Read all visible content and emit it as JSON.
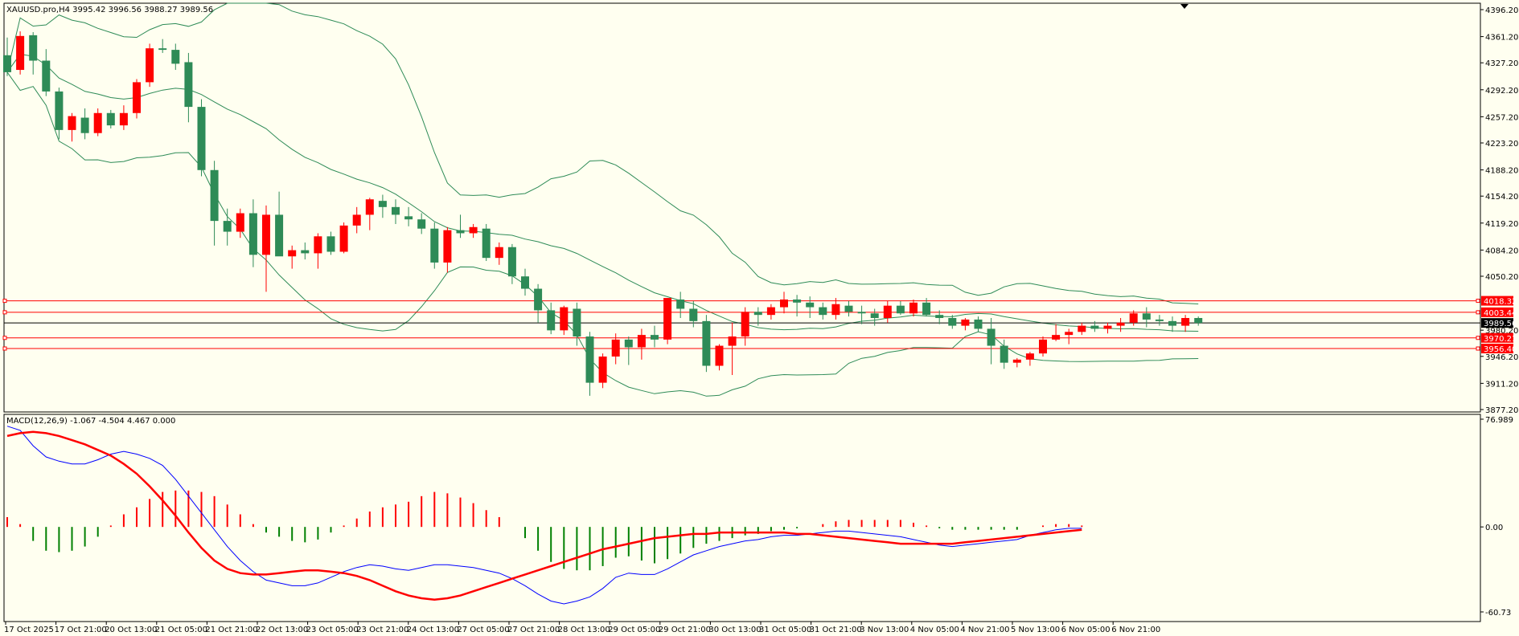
{
  "main_chart": {
    "header": "XAUUSD.pro,H4  3995.42 3996.56 3988.27 3989.56",
    "price_ticks": [
      "4396.20",
      "4361.20",
      "4327.20",
      "4292.20",
      "4257.20",
      "4223.20",
      "4188.20",
      "4154.20",
      "4119.20",
      "4084.20",
      "4050.20",
      "3980.20",
      "3946.20",
      "3911.20",
      "3877.20"
    ],
    "lines": [
      {
        "label": "4018.32",
        "value": 4018.32,
        "color": "#ff0000"
      },
      {
        "label": "4003.44",
        "value": 4003.44,
        "color": "#ff0000"
      },
      {
        "label": "3970.21",
        "value": 3970.21,
        "color": "#ff0000"
      },
      {
        "label": "3956.40",
        "value": 3956.4,
        "color": "#ff0000"
      },
      {
        "label": "3989.56",
        "value": 3989.56,
        "color": "#000000"
      }
    ],
    "colors": {
      "up": "#ff0000",
      "down": "#2e8b57",
      "band": "#2e8b57",
      "background": "#fffff0"
    }
  },
  "macd_panel": {
    "header": "MACD(12,26,9) -1.067 -4.504 4.467 0.000",
    "ticks": [
      "76.989",
      "0.00",
      "-60.73"
    ],
    "colors": {
      "macd_line": "#0000ff",
      "signal_line": "#ff0000",
      "hist_up": "#ff0000",
      "hist_down": "#008000"
    }
  },
  "time_axis": [
    "17 Oct 2025",
    "17 Oct 21:00",
    "20 Oct 13:00",
    "21 Oct 05:00",
    "21 Oct 21:00",
    "22 Oct 13:00",
    "23 Oct 05:00",
    "23 Oct 21:00",
    "24 Oct 13:00",
    "27 Oct 05:00",
    "27 Oct 21:00",
    "28 Oct 13:00",
    "29 Oct 05:00",
    "29 Oct 21:00",
    "30 Oct 13:00",
    "31 Oct 05:00",
    "31 Oct 21:00",
    "3 Nov 13:00",
    "4 Nov 05:00",
    "4 Nov 21:00",
    "5 Nov 13:00",
    "6 Nov 05:00",
    "6 Nov 21:00"
  ],
  "chart_data": [
    {
      "type": "candlestick",
      "title": "XAUUSD.pro,H4",
      "ylim": [
        3877.2,
        4396.2
      ],
      "bars": [
        [
          4337,
          4360,
          4310,
          4315
        ],
        [
          4318,
          4368,
          4312,
          4362
        ],
        [
          4363,
          4367,
          4312,
          4330
        ],
        [
          4330,
          4345,
          4284,
          4290
        ],
        [
          4290,
          4295,
          4228,
          4240
        ],
        [
          4240,
          4262,
          4225,
          4258
        ],
        [
          4256,
          4268,
          4228,
          4236
        ],
        [
          4236,
          4268,
          4232,
          4262
        ],
        [
          4262,
          4266,
          4242,
          4246
        ],
        [
          4246,
          4272,
          4240,
          4262
        ],
        [
          4262,
          4306,
          4255,
          4302
        ],
        [
          4302,
          4352,
          4296,
          4346
        ],
        [
          4346,
          4358,
          4340,
          4344
        ],
        [
          4344,
          4352,
          4318,
          4326
        ],
        [
          4328,
          4340,
          4250,
          4270
        ],
        [
          4270,
          4280,
          4180,
          4188
        ],
        [
          4188,
          4200,
          4090,
          4122
        ],
        [
          4122,
          4138,
          4090,
          4108
        ],
        [
          4108,
          4138,
          4100,
          4132
        ],
        [
          4132,
          4150,
          4062,
          4078
        ],
        [
          4078,
          4142,
          4030,
          4130
        ],
        [
          4130,
          4160,
          4100,
          4076
        ],
        [
          4076,
          4090,
          4060,
          4084
        ],
        [
          4084,
          4094,
          4072,
          4080
        ],
        [
          4080,
          4106,
          4060,
          4102
        ],
        [
          4102,
          4108,
          4078,
          4082
        ],
        [
          4082,
          4120,
          4080,
          4116
        ],
        [
          4116,
          4140,
          4106,
          4130
        ],
        [
          4130,
          4152,
          4110,
          4150
        ],
        [
          4148,
          4156,
          4126,
          4140
        ],
        [
          4140,
          4150,
          4118,
          4130
        ],
        [
          4128,
          4140,
          4115,
          4124
        ],
        [
          4124,
          4132,
          4105,
          4112
        ],
        [
          4112,
          4120,
          4060,
          4068
        ],
        [
          4068,
          4114,
          4055,
          4110
        ],
        [
          4110,
          4130,
          4100,
          4106
        ],
        [
          4106,
          4118,
          4100,
          4114
        ],
        [
          4112,
          4118,
          4070,
          4074
        ],
        [
          4074,
          4094,
          4065,
          4088
        ],
        [
          4088,
          4092,
          4040,
          4050
        ],
        [
          4050,
          4060,
          4025,
          4034
        ],
        [
          4034,
          4040,
          3990,
          4006
        ],
        [
          4006,
          4016,
          3975,
          3980
        ],
        [
          3980,
          4012,
          3974,
          4010
        ],
        [
          4008,
          4016,
          3960,
          3972
        ],
        [
          3972,
          3978,
          3895,
          3912
        ],
        [
          3912,
          3950,
          3905,
          3946
        ],
        [
          3946,
          3976,
          3936,
          3968
        ],
        [
          3968,
          3972,
          3935,
          3958
        ],
        [
          3958,
          3982,
          3942,
          3974
        ],
        [
          3974,
          3986,
          3958,
          3968
        ],
        [
          3968,
          4022,
          3962,
          4022
        ],
        [
          4020,
          4030,
          3996,
          4008
        ],
        [
          4008,
          4018,
          3984,
          3992
        ],
        [
          3992,
          4000,
          3926,
          3934
        ],
        [
          3934,
          3962,
          3928,
          3960
        ],
        [
          3960,
          3990,
          3922,
          3972
        ],
        [
          3972,
          4010,
          3960,
          4004
        ],
        [
          4004,
          4010,
          3986,
          4000
        ],
        [
          4000,
          4014,
          3994,
          4010
        ],
        [
          4010,
          4030,
          4002,
          4020
        ],
        [
          4020,
          4026,
          3998,
          4016
        ],
        [
          4016,
          4024,
          3996,
          4010
        ],
        [
          4010,
          4016,
          3994,
          4000
        ],
        [
          4000,
          4022,
          3994,
          4014
        ],
        [
          4012,
          4018,
          3998,
          4004
        ],
        [
          4004,
          4012,
          3988,
          4002
        ],
        [
          4002,
          4008,
          3986,
          3996
        ],
        [
          3996,
          4018,
          3990,
          4012
        ],
        [
          4012,
          4018,
          4000,
          4002
        ],
        [
          4002,
          4020,
          3998,
          4016
        ],
        [
          4016,
          4022,
          3998,
          4000
        ],
        [
          4000,
          4006,
          3988,
          3996
        ],
        [
          3996,
          4000,
          3982,
          3986
        ],
        [
          3986,
          3996,
          3980,
          3994
        ],
        [
          3994,
          3998,
          3978,
          3982
        ],
        [
          3982,
          3996,
          3936,
          3960
        ],
        [
          3960,
          3968,
          3930,
          3938
        ],
        [
          3938,
          3944,
          3932,
          3942
        ],
        [
          3942,
          3952,
          3934,
          3950
        ],
        [
          3950,
          3972,
          3946,
          3968
        ],
        [
          3968,
          3988,
          3966,
          3974
        ],
        [
          3974,
          3982,
          3962,
          3978
        ],
        [
          3978,
          3990,
          3974,
          3986
        ],
        [
          3986,
          3992,
          3978,
          3982
        ],
        [
          3982,
          3990,
          3976,
          3986
        ],
        [
          3986,
          3996,
          3978,
          3990
        ],
        [
          3990,
          4006,
          3986,
          4002
        ],
        [
          4002,
          4010,
          3984,
          3994
        ],
        [
          3994,
          4000,
          3986,
          3992
        ],
        [
          3992,
          3998,
          3978,
          3986
        ],
        [
          3986,
          4000,
          3978,
          3996
        ],
        [
          3996,
          3998,
          3986,
          3989.56
        ]
      ]
    },
    {
      "type": "line",
      "title": "MACD(12,26,9)",
      "ylim": [
        -60.73,
        76.989
      ],
      "series": [
        {
          "name": "macd",
          "values": [
            72,
            69,
            58,
            50,
            47,
            45,
            45,
            48,
            52,
            54,
            52,
            49,
            44,
            34,
            22,
            10,
            -2,
            -14,
            -24,
            -32,
            -38,
            -40,
            -42,
            -42,
            -40,
            -36,
            -32,
            -29,
            -27,
            -28,
            -30,
            -31,
            -29,
            -27,
            -27,
            -28,
            -29,
            -31,
            -33,
            -37,
            -42,
            -48,
            -53,
            -55,
            -53,
            -50,
            -44,
            -36,
            -33,
            -34,
            -34,
            -30,
            -25,
            -20,
            -17,
            -14,
            -12,
            -10,
            -9,
            -7,
            -6,
            -6,
            -5,
            -4,
            -3,
            -3,
            -4,
            -5,
            -6,
            -7,
            -9,
            -11,
            -13,
            -14,
            -13,
            -12,
            -11,
            -10,
            -9,
            -6,
            -4,
            -2,
            -1,
            -1
          ]
        },
        {
          "name": "signal",
          "values": [
            65,
            67,
            68,
            67,
            65,
            62,
            59,
            55,
            51,
            45,
            38,
            29,
            19,
            8,
            -4,
            -15,
            -24,
            -30,
            -33,
            -34,
            -34,
            -33,
            -32,
            -31,
            -31,
            -32,
            -33,
            -35,
            -38,
            -42,
            -46,
            -49,
            -51,
            -52,
            -51,
            -49,
            -46,
            -43,
            -40,
            -37,
            -34,
            -31,
            -28,
            -25,
            -22,
            -19,
            -16,
            -14,
            -12,
            -10,
            -8,
            -7,
            -6,
            -5,
            -5,
            -4,
            -4,
            -4,
            -4,
            -4,
            -4,
            -5,
            -5,
            -6,
            -7,
            -8,
            -9,
            -10,
            -11,
            -12,
            -12,
            -12,
            -12,
            -12,
            -11,
            -10,
            -9,
            -8,
            -7,
            -6,
            -5,
            -4,
            -3,
            -2
          ]
        },
        {
          "name": "histogram",
          "values": [
            7,
            2,
            -10,
            -17,
            -18,
            -17,
            -14,
            -7,
            1,
            9,
            14,
            20,
            25,
            26,
            26,
            25,
            22,
            16,
            9,
            2,
            -4,
            -7,
            -10,
            -11,
            -9,
            -4,
            1,
            6,
            11,
            14,
            16,
            18,
            22,
            25,
            24,
            21,
            17,
            12,
            7,
            0,
            -8,
            -17,
            -25,
            -30,
            -31,
            -31,
            -28,
            -22,
            -21,
            -24,
            -26,
            -23,
            -19,
            -15,
            -12,
            -10,
            -8,
            -6,
            -5,
            -3,
            -2,
            -1,
            0,
            2,
            4,
            5,
            5,
            5,
            5,
            5,
            3,
            1,
            -1,
            -2,
            -2,
            -2,
            -2,
            -2,
            -2,
            0,
            1,
            2,
            2,
            1
          ]
        }
      ]
    }
  ]
}
